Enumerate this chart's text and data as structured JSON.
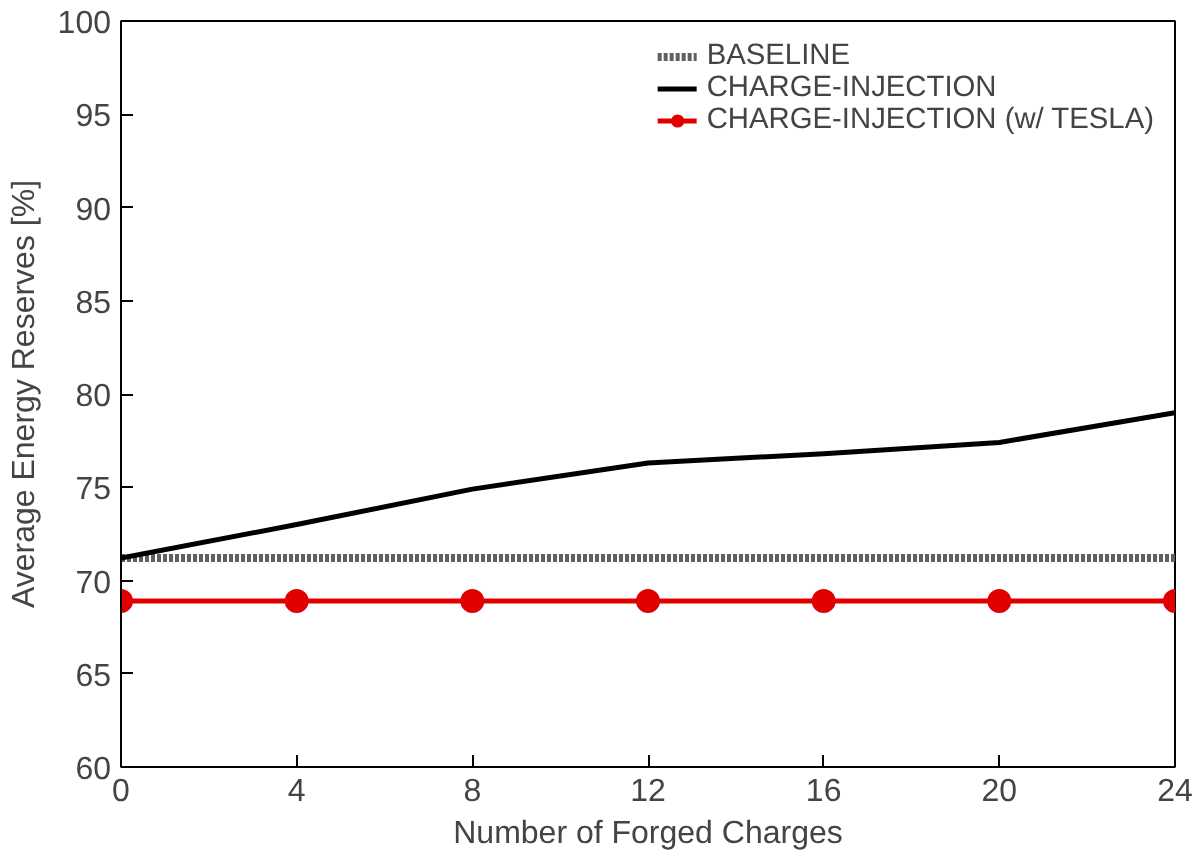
{
  "chart_data": {
    "type": "line",
    "xlabel": "Number of Forged Charges",
    "ylabel": "Average Energy Reserves [%]",
    "x": [
      0,
      4,
      8,
      12,
      16,
      20,
      24
    ],
    "xlim": [
      0,
      24
    ],
    "xticks": [
      0,
      4,
      8,
      12,
      16,
      20,
      24
    ],
    "ylim": [
      60,
      100
    ],
    "yticks": [
      60,
      65,
      70,
      75,
      80,
      85,
      90,
      95,
      100
    ],
    "grid": false,
    "legend": "top right",
    "series": [
      {
        "name": "BASELINE",
        "color": "#606060",
        "line_style": "dotted",
        "marker": "none",
        "values": [
          71.2,
          71.2,
          71.2,
          71.2,
          71.2,
          71.2,
          71.2
        ]
      },
      {
        "name": "CHARGE-INJECTION",
        "color": "#000000",
        "line_style": "solid",
        "marker": "none",
        "values": [
          71.2,
          73.0,
          74.9,
          76.3,
          76.8,
          77.4,
          79.0
        ]
      },
      {
        "name": "CHARGE-INJECTION (w/ TESLA)",
        "color": "#e00000",
        "line_style": "solid",
        "marker": "circle",
        "values": [
          68.9,
          68.9,
          68.9,
          68.9,
          68.9,
          68.9,
          68.9
        ]
      }
    ]
  }
}
